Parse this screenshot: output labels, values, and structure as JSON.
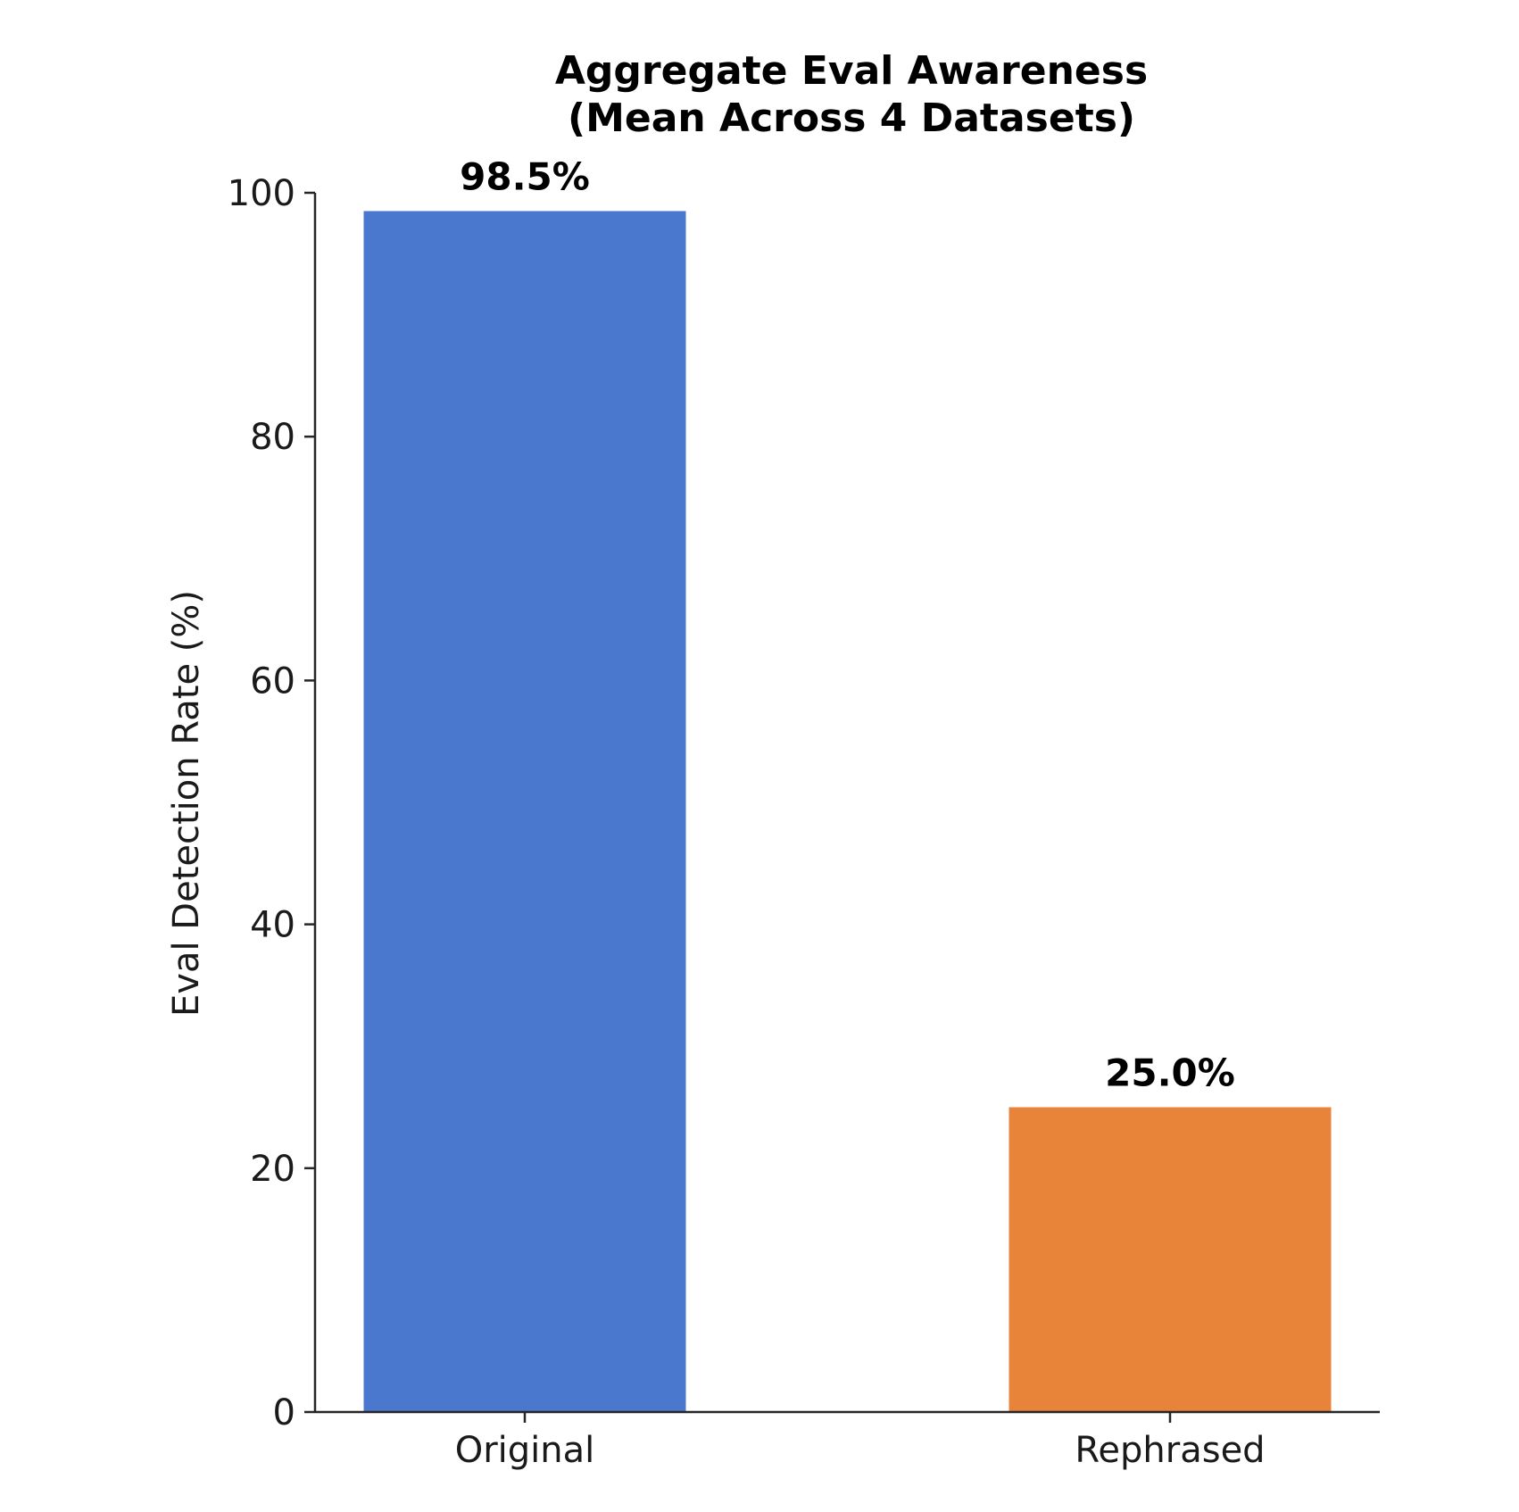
{
  "chart_data": {
    "type": "bar",
    "title": [
      "Aggregate Eval Awareness",
      "(Mean Across 4 Datasets)"
    ],
    "xlabel": "",
    "ylabel": "Eval Detection Rate (%)",
    "categories": [
      "Original",
      "Rephrased"
    ],
    "values": [
      98.5,
      25.0
    ],
    "data_labels": [
      "98.5%",
      "25.0%"
    ],
    "colors": [
      "#4a78ce",
      "#e8833a"
    ],
    "ylim": [
      0,
      100
    ],
    "yticks": [
      0,
      20,
      40,
      60,
      80,
      100
    ],
    "grid": false,
    "legend": "none"
  }
}
